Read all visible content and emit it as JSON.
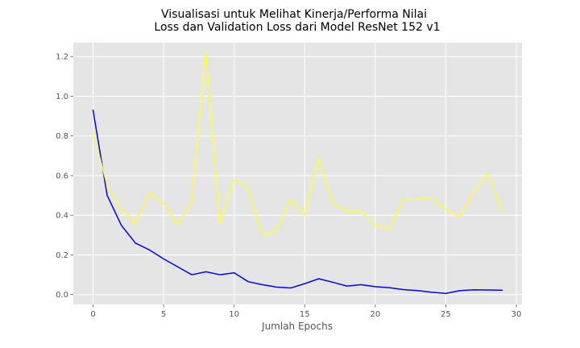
{
  "chart_data": {
    "type": "line",
    "title_lines": [
      "Visualisasi untuk Melihat Kinerja/Performa Nilai",
      "Loss dan Validation Loss dari Model ResNet 152 v1"
    ],
    "xlabel": "Jumlah Epochs",
    "ylabel": "",
    "xlim": [
      -1.4,
      30.4
    ],
    "ylim": [
      -0.05,
      1.27
    ],
    "xticks": [
      0,
      5,
      10,
      15,
      20,
      25,
      30
    ],
    "yticks": [
      0.0,
      0.2,
      0.4,
      0.6,
      0.8,
      1.0,
      1.2
    ],
    "xtick_labels": [
      "0",
      "5",
      "10",
      "15",
      "20",
      "25",
      "30"
    ],
    "ytick_labels": [
      "0.0",
      "0.2",
      "0.4",
      "0.6",
      "0.8",
      "1.0",
      "1.2"
    ],
    "grid": true,
    "background": "#e5e5e5",
    "x": [
      0,
      1,
      2,
      3,
      4,
      5,
      6,
      7,
      8,
      9,
      10,
      11,
      12,
      13,
      14,
      15,
      16,
      17,
      18,
      19,
      20,
      21,
      22,
      23,
      24,
      25,
      26,
      27,
      28,
      29
    ],
    "series": [
      {
        "color": "#0000ff",
        "values": [
          0.93,
          0.5,
          0.35,
          0.26,
          0.225,
          0.18,
          0.14,
          0.1,
          0.115,
          0.1,
          0.11,
          0.065,
          0.05,
          0.038,
          0.033,
          0.055,
          0.08,
          0.062,
          0.043,
          0.05,
          0.04,
          0.035,
          0.025,
          0.02,
          0.012,
          0.006,
          0.02,
          0.024,
          0.023,
          0.022
        ]
      },
      {
        "color": "#ffff33",
        "values": [
          0.82,
          0.55,
          0.43,
          0.36,
          0.51,
          0.46,
          0.35,
          0.47,
          1.22,
          0.36,
          0.58,
          0.54,
          0.3,
          0.32,
          0.48,
          0.4,
          0.69,
          0.46,
          0.42,
          0.42,
          0.35,
          0.33,
          0.48,
          0.48,
          0.49,
          0.43,
          0.39,
          0.52,
          0.61,
          0.42
        ]
      }
    ]
  }
}
